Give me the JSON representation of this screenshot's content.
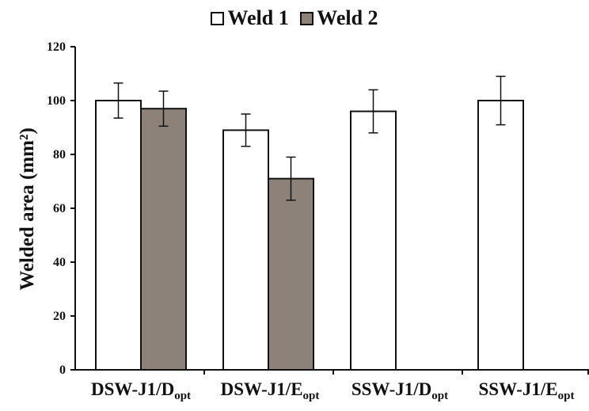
{
  "chart_data": {
    "type": "bar",
    "categories": [
      {
        "main": "DSW-J1/D",
        "sub": "opt"
      },
      {
        "main": "DSW-J1/E",
        "sub": "opt"
      },
      {
        "main": "SSW-J1/D",
        "sub": "opt"
      },
      {
        "main": "SSW-J1/E",
        "sub": "opt"
      }
    ],
    "series": [
      {
        "name": "Weld 1",
        "color": "#ffffff",
        "values": [
          100,
          89,
          96,
          100
        ],
        "errors": [
          6.5,
          6,
          8,
          9
        ]
      },
      {
        "name": "Weld 2",
        "color": "#8c8279",
        "values": [
          97,
          71,
          null,
          null
        ],
        "errors": [
          6.5,
          8,
          null,
          null
        ]
      }
    ],
    "ylabel": "Welded area (mm²)",
    "ylim": [
      0,
      120
    ],
    "yticks": [
      0,
      20,
      40,
      60,
      80,
      100,
      120
    ],
    "grid": false,
    "legend_position": "top"
  }
}
